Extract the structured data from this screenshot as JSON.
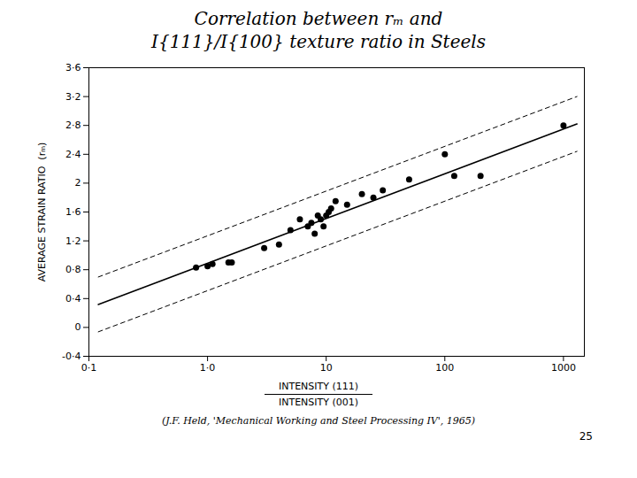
{
  "chart_data": {
    "type": "scatter",
    "title": "Correlation between rₘ and\nI{111}/I{100} texture ratio in Steels",
    "xlabel": [
      "INTENSITY (111)",
      "INTENSITY (001)"
    ],
    "ylabel": "AVERAGE STRAIN RATIO  (rₘ)",
    "annotations": [
      "(J.F. Held, 'Mechanical Working and Steel Processing IV', 1965)",
      "25"
    ],
    "log": "x",
    "grid": false,
    "xlim": [
      0.1,
      1500
    ],
    "xticks": [
      {
        "value": 0.1,
        "label": "0·1"
      },
      {
        "value": 1.0,
        "label": "1·0"
      },
      10,
      100,
      1000
    ],
    "ylim": [
      -0.4,
      3.6
    ],
    "yticks": [
      {
        "value": -0.4,
        "label": "-0·4"
      },
      0,
      {
        "value": 0.4,
        "label": "0·4"
      },
      {
        "value": 0.8,
        "label": "0·8"
      },
      {
        "value": 1.2,
        "label": "1·2"
      },
      {
        "value": 1.6,
        "label": "1·6"
      },
      2,
      {
        "value": 2.4,
        "label": "2·4"
      },
      {
        "value": 2.8,
        "label": "2·8"
      },
      {
        "value": 3.2,
        "label": "3·2"
      },
      {
        "value": 3.6,
        "label": "3·6"
      }
    ],
    "series": [
      {
        "type": "scatter",
        "marker": "circle",
        "color": "#000000",
        "x": [
          0.8,
          1.0,
          1.1,
          1.5,
          1.6,
          3.0,
          4.0,
          5.0,
          6.0,
          7.0,
          7.5,
          8.0,
          8.5,
          9.0,
          9.5,
          10.0,
          10.5,
          11.0,
          12.0,
          15.0,
          20.0,
          25.0,
          30.0,
          50.0,
          100.0,
          120.0,
          200.0,
          1000.0
        ],
        "values": [
          0.83,
          0.85,
          0.88,
          0.9,
          0.9,
          1.1,
          1.15,
          1.35,
          1.5,
          1.4,
          1.45,
          1.3,
          1.55,
          1.5,
          1.4,
          1.55,
          1.6,
          1.65,
          1.75,
          1.7,
          1.85,
          1.8,
          1.9,
          2.05,
          2.4,
          2.1,
          2.1,
          2.8
        ]
      },
      {
        "type": "line",
        "line_style": "solid",
        "color": "#000000",
        "x": [
          0.12,
          1300
        ],
        "values": [
          0.3190923725,
          2.8206448784
        ]
      },
      {
        "type": "line",
        "line_style": "dashed",
        "color": "#000000",
        "x": [
          0.12,
          1300
        ],
        "values": [
          0.6990923725,
          3.2006448784
        ]
      },
      {
        "type": "line",
        "line_style": "dashed",
        "color": "#000000",
        "x": [
          0.12,
          1300
        ],
        "values": [
          -0.0609076275,
          2.4406448784
        ]
      }
    ]
  }
}
